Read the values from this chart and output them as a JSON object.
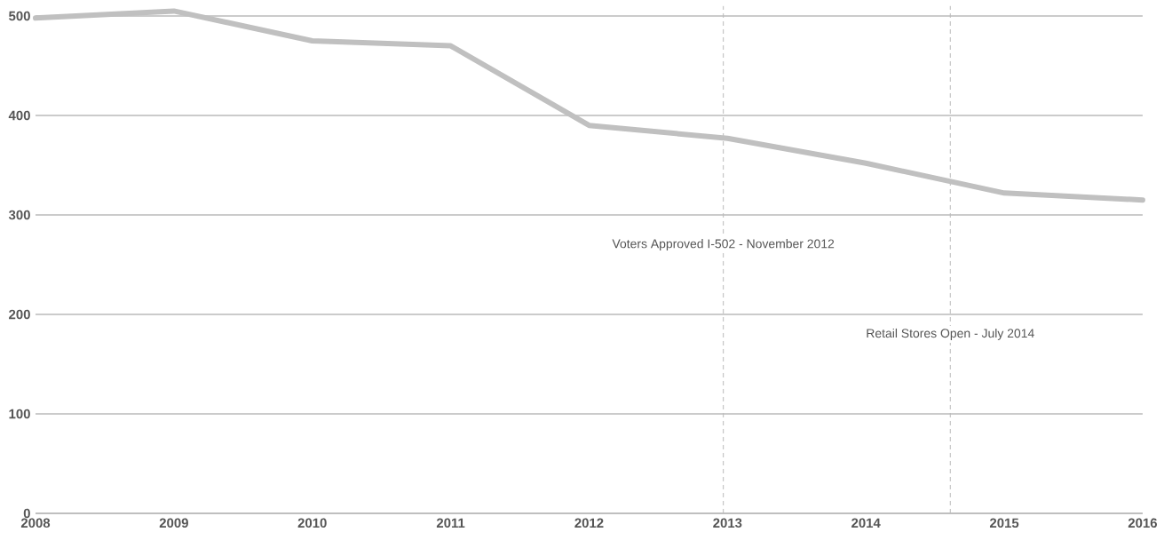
{
  "chart_data": {
    "type": "line",
    "x": [
      2008,
      2009,
      2010,
      2011,
      2012,
      2013,
      2014,
      2015,
      2016
    ],
    "series": [
      {
        "color": "#c0c0c0",
        "values": [
          498,
          505,
          475,
          470,
          390,
          377,
          352,
          322,
          315
        ]
      }
    ],
    "xlim": [
      2008,
      2016
    ],
    "xticks": [
      2008,
      2009,
      2010,
      2011,
      2012,
      2013,
      2014,
      2015,
      2016
    ],
    "ylim": [
      0,
      510
    ],
    "yticks": [
      0,
      100,
      200,
      300,
      400,
      500
    ],
    "grid": "y",
    "line_style": "solid",
    "ref_lines": [
      {
        "axis": "x",
        "value": 2012.97,
        "label": "Voters Approved I-502 - November 2012",
        "color": "#bbbbbb",
        "line_style": "dashed"
      },
      {
        "axis": "x",
        "value": 2014.61,
        "label": "Retail Stores Open - July 2014",
        "color": "#bbbbbb",
        "line_style": "dashed"
      }
    ]
  }
}
